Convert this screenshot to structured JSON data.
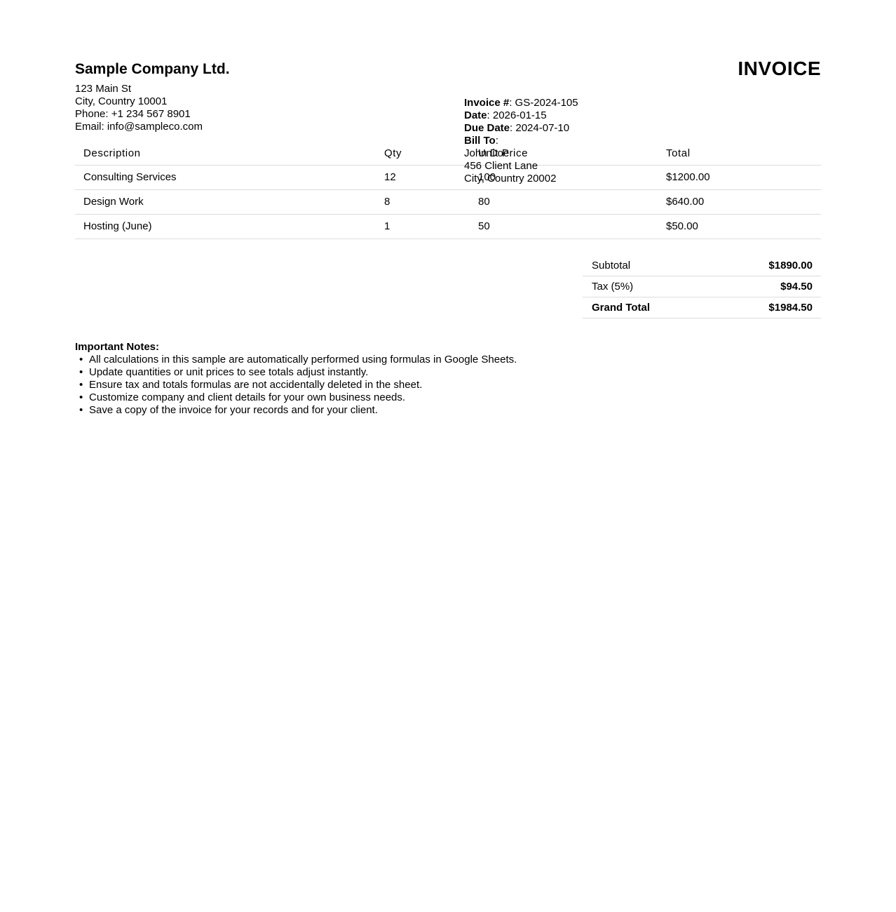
{
  "company": {
    "name": "Sample Company Ltd.",
    "address_lines": [
      "123 Main St",
      "City, Country 10001",
      "Phone: +1 234 567 8901",
      "Email: info@sampleco.com"
    ]
  },
  "title": "INVOICE",
  "meta": {
    "separator": ": ",
    "fields": [
      {
        "label": "Invoice #",
        "value": "GS-2024-105"
      },
      {
        "label": "Date",
        "value": "2026-01-15"
      },
      {
        "label": "Due Date",
        "value": "2024-07-10"
      }
    ],
    "bill_to": {
      "label": "Bill To",
      "colon": ":",
      "lines": [
        "John Doe",
        "456 Client Lane",
        "City, Country 20002"
      ]
    }
  },
  "items_table": {
    "headers": [
      "Description",
      "Qty",
      "Unit Price",
      "Total"
    ],
    "rows": [
      {
        "description": "Consulting Services",
        "qty": "12",
        "unit_price": "100",
        "total": "$1200.00"
      },
      {
        "description": "Design Work",
        "qty": "8",
        "unit_price": "80",
        "total": "$640.00"
      },
      {
        "description": "Hosting (June)",
        "qty": "1",
        "unit_price": "50",
        "total": "$50.00"
      }
    ]
  },
  "totals": {
    "subtotal": {
      "label": "Subtotal",
      "value": "$1890.00"
    },
    "tax": {
      "label": "Tax (5%)",
      "value": "$94.50"
    },
    "grand_total": {
      "label": "Grand Total",
      "value": "$1984.50"
    }
  },
  "notes": {
    "title": "Important Notes:",
    "items": [
      "All calculations in this sample are automatically performed using formulas in Google Sheets.",
      "Update quantities or unit prices to see totals adjust instantly.",
      "Ensure tax and totals formulas are not accidentally deleted in the sheet.",
      "Customize company and client details for your own business needs.",
      "Save a copy of the invoice for your records and for your client."
    ]
  },
  "colors": {
    "text": "#000000",
    "divider": "#dcdcdc",
    "background": "#ffffff"
  }
}
